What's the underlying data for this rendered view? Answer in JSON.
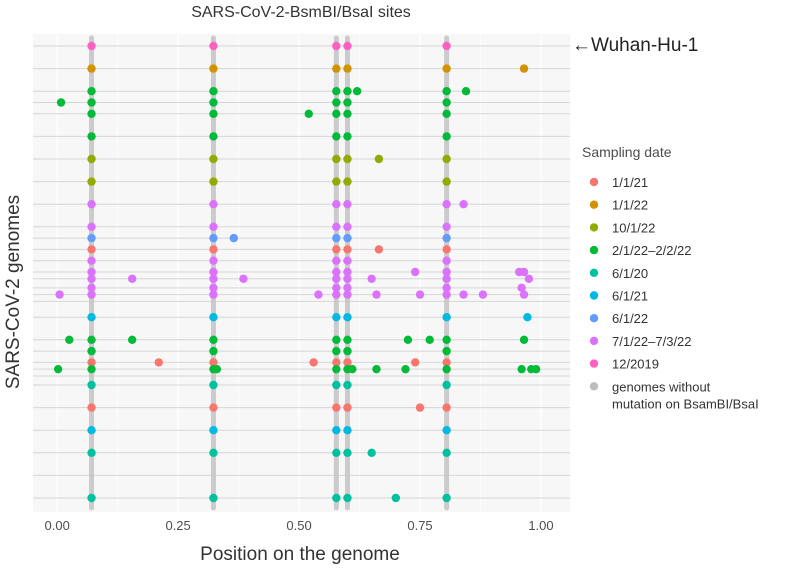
{
  "chart_data": {
    "type": "scatter",
    "title": "SARS-CoV-2-BsmBI/BsaI sites",
    "xlabel": "Position on the genome",
    "ylabel": "SARS-CoV-2 genomes",
    "xlim": [
      -0.05,
      1.06
    ],
    "x_ticks": [
      0,
      0.25,
      0.5,
      0.75,
      1
    ],
    "x_tick_labels": [
      "0.00",
      "0.25",
      "0.50",
      "0.75",
      "1.00"
    ],
    "conserved_sites": [
      0.071,
      0.323,
      0.577,
      0.6,
      0.805
    ],
    "annotation": "←Wuhan-Hu-1",
    "legend": {
      "title": "Sampling date",
      "entries": [
        {
          "label": "1/1/21",
          "color": "#F8766D"
        },
        {
          "label": "1/1/22",
          "color": "#D39200"
        },
        {
          "label": "10/1/22",
          "color": "#93AA00"
        },
        {
          "label": "2/1/22–2/2/22",
          "color": "#00BA38"
        },
        {
          "label": "6/1/20",
          "color": "#00C19F"
        },
        {
          "label": "6/1/21",
          "color": "#00B9E3"
        },
        {
          "label": "6/1/22",
          "color": "#619CFF"
        },
        {
          "label": "7/1/22–7/3/22",
          "color": "#DB72FB"
        },
        {
          "label": "12/2019",
          "color": "#FF61C3"
        },
        {
          "label": "genomes without mutation on BsamBI/BsaI",
          "label_lines": [
            "genomes without",
            "mutation on BsamBI/BsaI"
          ],
          "color": "#BDBDBD"
        }
      ]
    },
    "rows": [
      {
        "y": 1,
        "color": "#FF61C3",
        "extra": []
      },
      {
        "y": 2,
        "color": "#D39200",
        "extra": [
          0.965
        ]
      },
      {
        "y": 3,
        "color": "#00BA38",
        "extra": [
          0.62,
          0.845
        ]
      },
      {
        "y": 3.5,
        "color": "#00BA38",
        "extra": [
          0.008
        ]
      },
      {
        "y": 4,
        "color": "#00BA38",
        "extra": [
          0.52
        ]
      },
      {
        "y": 5,
        "color": "#00BA38",
        "extra": []
      },
      {
        "y": 6,
        "color": "#93AA00",
        "extra": [
          0.665
        ]
      },
      {
        "y": 7,
        "color": "#93AA00",
        "extra": []
      },
      {
        "y": 8,
        "color": "#DB72FB",
        "extra": [
          0.84
        ]
      },
      {
        "y": 9,
        "color": "#DB72FB",
        "extra": []
      },
      {
        "y": 9.5,
        "color": "#619CFF",
        "extra": [
          0.365
        ]
      },
      {
        "y": 10,
        "color": "#F8766D",
        "extra": [
          0.665
        ]
      },
      {
        "y": 10.5,
        "color": "#DB72FB",
        "extra": []
      },
      {
        "y": 11,
        "color": "#DB72FB",
        "extra": [
          0.74,
          0.955,
          0.965
        ]
      },
      {
        "y": 11.3,
        "color": "#DB72FB",
        "extra": [
          0.155,
          0.385,
          0.65,
          0.975
        ]
      },
      {
        "y": 11.7,
        "color": "#DB72FB",
        "extra": [
          0.96
        ]
      },
      {
        "y": 12,
        "color": "#DB72FB",
        "extra": [
          0.005,
          0.54,
          0.66,
          0.75,
          0.84,
          0.88,
          0.965
        ]
      },
      {
        "y": 13,
        "color": "#00B9E3",
        "extra": [
          0.972
        ]
      },
      {
        "y": 14,
        "color": "#00BA38",
        "extra": [
          0.025,
          0.155,
          0.725,
          0.77,
          0.965
        ]
      },
      {
        "y": 14.5,
        "color": "#00BA38",
        "extra": []
      },
      {
        "y": 15,
        "color": "#F8766D",
        "extra": [
          0.21,
          0.53,
          0.74
        ]
      },
      {
        "y": 15.3,
        "color": "#00BA38",
        "extra": [
          0.002,
          0.33,
          0.61,
          0.66,
          0.72,
          0.96,
          0.98,
          0.99
        ]
      },
      {
        "y": 16,
        "color": "#00C19F",
        "extra": []
      },
      {
        "y": 17,
        "color": "#F8766D",
        "extra": [
          0.75
        ]
      },
      {
        "y": 18,
        "color": "#00B9E3",
        "extra": []
      },
      {
        "y": 19,
        "color": "#00C19F",
        "extra": [
          0.65
        ]
      },
      {
        "y": 21,
        "color": "#00C19F",
        "extra": [
          0.7
        ]
      }
    ],
    "horizontal_gridlines": [
      1,
      2,
      3,
      3.5,
      4,
      5,
      6,
      7,
      8,
      9,
      9.5,
      10,
      10.5,
      11,
      11.3,
      11.7,
      12,
      12.3,
      13,
      14,
      14.5,
      15,
      15.3,
      15.6,
      16,
      17,
      18,
      19,
      20,
      21
    ]
  }
}
